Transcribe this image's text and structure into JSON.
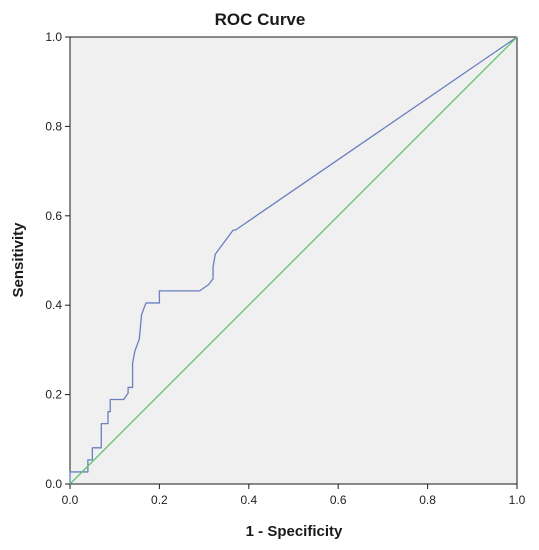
{
  "chart_data": {
    "type": "line",
    "title": "ROC Curve",
    "xlabel": "1 - Specificity",
    "ylabel": "Sensitivity",
    "xlim": [
      0,
      1
    ],
    "ylim": [
      0,
      1
    ],
    "x_ticks": [
      "0.0",
      "0.2",
      "0.4",
      "0.6",
      "0.8",
      "1.0"
    ],
    "y_ticks": [
      "0.0",
      "0.2",
      "0.4",
      "0.6",
      "0.8",
      "1.0"
    ],
    "grid": false,
    "legend": "none",
    "plot_background": "#f0f0f0",
    "series": [
      {
        "color": "#6b7fc0",
        "x": [
          0,
          0,
          0.04,
          0.04,
          0.05,
          0.05,
          0.07,
          0.07,
          0.085,
          0.085,
          0.09,
          0.09,
          0.12,
          0.13,
          0.13,
          0.14,
          0.14,
          0.145,
          0.155,
          0.16,
          0.165,
          0.17,
          0.175,
          0.2,
          0.2,
          0.29,
          0.31,
          0.32,
          0.32,
          0.325,
          0.345,
          0.365,
          0.37,
          1.0
        ],
        "y": [
          0,
          0.027,
          0.027,
          0.054,
          0.054,
          0.081,
          0.081,
          0.135,
          0.135,
          0.162,
          0.162,
          0.189,
          0.189,
          0.203,
          0.216,
          0.216,
          0.27,
          0.297,
          0.324,
          0.378,
          0.392,
          0.405,
          0.405,
          0.405,
          0.432,
          0.432,
          0.446,
          0.459,
          0.486,
          0.514,
          0.541,
          0.568,
          0.568,
          1.0
        ]
      },
      {
        "color": "#5cc46a",
        "x": [
          0,
          1
        ],
        "y": [
          0,
          1
        ]
      }
    ]
  }
}
